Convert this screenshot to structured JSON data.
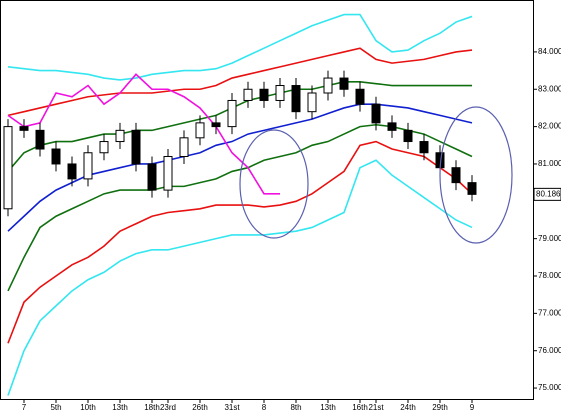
{
  "chart_data": {
    "type": "candlestick",
    "categories": [
      null,
      "7",
      null,
      "5th",
      null,
      "10th",
      null,
      "13th",
      null,
      "18th",
      "23rd",
      null,
      "26th",
      null,
      "31st",
      null,
      "8",
      null,
      "8th",
      null,
      "13th",
      null,
      "16th",
      "21st",
      null,
      "24th",
      null,
      "29th",
      null,
      "9"
    ],
    "open": [
      79.8,
      82.0,
      81.9,
      81.4,
      81.0,
      80.6,
      81.3,
      81.6,
      81.9,
      81.0,
      80.3,
      81.2,
      81.7,
      82.1,
      82.0,
      82.7,
      83.0,
      82.7,
      83.1,
      82.4,
      82.9,
      83.3,
      83.0,
      82.6,
      82.1,
      81.9,
      81.6,
      81.3,
      80.9,
      80.5
    ],
    "high": [
      82.2,
      82.2,
      82.1,
      81.6,
      81.2,
      81.5,
      81.8,
      82.1,
      82.1,
      81.2,
      81.4,
      81.9,
      82.3,
      82.3,
      82.9,
      83.2,
      83.2,
      83.3,
      83.3,
      83.1,
      83.5,
      83.5,
      83.2,
      82.8,
      82.3,
      82.1,
      81.8,
      81.5,
      81.1,
      80.7
    ],
    "low": [
      79.6,
      81.7,
      81.2,
      80.8,
      80.4,
      80.4,
      81.1,
      81.4,
      80.8,
      80.1,
      80.1,
      81.0,
      81.5,
      81.8,
      81.8,
      82.5,
      82.5,
      82.5,
      82.2,
      82.2,
      82.7,
      82.8,
      82.4,
      81.9,
      81.7,
      81.4,
      81.1,
      80.7,
      80.3,
      80.0
    ],
    "close": [
      82.0,
      81.9,
      81.4,
      81.0,
      80.6,
      81.3,
      81.6,
      81.9,
      81.0,
      80.3,
      81.2,
      81.7,
      82.1,
      82.0,
      82.7,
      83.0,
      82.7,
      83.1,
      82.4,
      82.9,
      83.3,
      83.0,
      82.6,
      82.1,
      81.9,
      81.6,
      81.3,
      80.9,
      80.5,
      80.186
    ],
    "last_price_label": "80.186",
    "up_color": "#ffffff",
    "down_color": "#000000",
    "series": [
      {
        "color": "#33e6f0",
        "values": [
          83.6,
          83.55,
          83.5,
          83.5,
          83.45,
          83.4,
          83.3,
          83.25,
          83.3,
          83.4,
          83.45,
          83.5,
          83.5,
          83.55,
          83.7,
          83.9,
          84.1,
          84.3,
          84.5,
          84.7,
          84.85,
          85.0,
          85.0,
          84.3,
          84.0,
          84.05,
          84.3,
          84.5,
          84.8,
          84.95
        ]
      },
      {
        "color": "#e81010",
        "values": [
          82.3,
          82.4,
          82.5,
          82.6,
          82.7,
          82.8,
          82.85,
          82.9,
          82.9,
          82.9,
          82.95,
          83.0,
          83.0,
          83.1,
          83.3,
          83.4,
          83.5,
          83.6,
          83.7,
          83.8,
          83.9,
          84.0,
          84.1,
          83.8,
          83.7,
          83.75,
          83.8,
          83.9,
          84.0,
          84.05
        ]
      },
      {
        "color": "#107010",
        "values": [
          80.8,
          81.3,
          81.5,
          81.6,
          81.6,
          81.7,
          81.8,
          81.8,
          81.9,
          81.9,
          82.0,
          82.1,
          82.2,
          82.3,
          82.5,
          82.7,
          82.8,
          82.9,
          83.0,
          83.0,
          83.1,
          83.2,
          83.2,
          83.15,
          83.1,
          83.1,
          83.1,
          83.1,
          83.1,
          83.1
        ]
      },
      {
        "color": "#1020d0",
        "values": [
          79.2,
          79.6,
          80.0,
          80.3,
          80.5,
          80.7,
          80.8,
          80.9,
          81.0,
          81.0,
          81.1,
          81.2,
          81.3,
          81.5,
          81.6,
          81.8,
          81.9,
          82.0,
          82.1,
          82.2,
          82.35,
          82.5,
          82.6,
          82.6,
          82.55,
          82.5,
          82.4,
          82.3,
          82.2,
          82.1
        ]
      },
      {
        "color": "#107010",
        "values": [
          77.6,
          78.5,
          79.3,
          79.6,
          79.8,
          80.0,
          80.2,
          80.3,
          80.3,
          80.3,
          80.4,
          80.4,
          80.5,
          80.6,
          80.8,
          80.9,
          81.1,
          81.2,
          81.3,
          81.5,
          81.6,
          81.8,
          82.0,
          82.05,
          82.0,
          81.9,
          81.8,
          81.6,
          81.4,
          81.2
        ]
      },
      {
        "color": "#e81010",
        "values": [
          76.2,
          77.3,
          77.7,
          78.0,
          78.3,
          78.5,
          78.8,
          79.2,
          79.4,
          79.6,
          79.7,
          79.75,
          79.8,
          79.9,
          79.9,
          79.9,
          79.85,
          79.9,
          80.0,
          80.2,
          80.5,
          80.8,
          81.5,
          81.6,
          81.4,
          81.3,
          81.2,
          80.9,
          80.6,
          80.2
        ]
      },
      {
        "color": "#33e6f0",
        "values": [
          74.8,
          76.0,
          76.8,
          77.2,
          77.6,
          77.9,
          78.1,
          78.4,
          78.6,
          78.7,
          78.7,
          78.8,
          78.9,
          79.0,
          79.1,
          79.1,
          79.1,
          79.15,
          79.2,
          79.3,
          79.5,
          79.7,
          80.9,
          81.1,
          80.7,
          80.4,
          80.1,
          79.8,
          79.5,
          79.3
        ]
      },
      {
        "color": "#f010e0",
        "values": [
          82.3,
          82.0,
          82.1,
          82.9,
          82.8,
          83.1,
          82.6,
          82.9,
          83.4,
          83.0,
          83.0,
          82.8,
          82.5,
          82.0,
          81.3,
          80.9,
          80.2,
          80.2,
          null,
          null,
          null,
          null,
          null,
          null,
          null,
          null,
          null,
          null,
          null,
          null
        ]
      }
    ],
    "ylim": [
      74.68,
      85.39
    ],
    "yticks": [
      {
        "value": 75,
        "label": "75.000"
      },
      {
        "value": 76,
        "label": "76.000"
      },
      {
        "value": 77,
        "label": "77.000"
      },
      {
        "value": 78,
        "label": "78.000"
      },
      {
        "value": 79,
        "label": "79.000"
      },
      {
        "value": 81,
        "label": "81.000"
      },
      {
        "value": 82,
        "label": "82.000"
      },
      {
        "value": 83,
        "label": "83.000"
      },
      {
        "value": 84,
        "label": "84.000"
      }
    ]
  }
}
